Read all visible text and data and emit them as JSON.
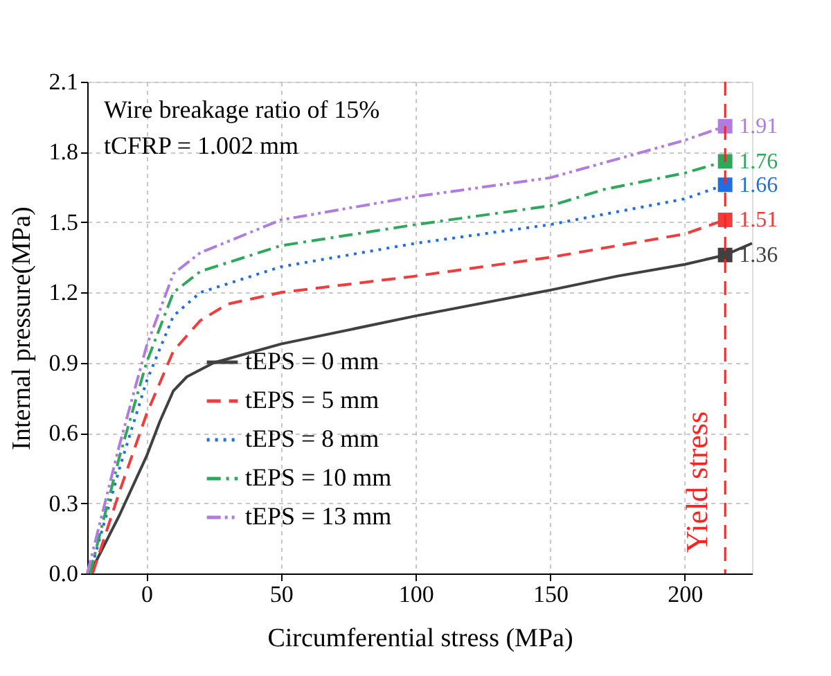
{
  "chart_data": {
    "type": "line",
    "xlabel": "Circumferential stress (MPa)",
    "ylabel": "Internal pressure(MPa)",
    "annotations": [
      "Wire breakage ratio of 15%",
      "tCFRP = 1.002 mm"
    ],
    "xlim": [
      -22,
      225
    ],
    "ylim": [
      0,
      2.1
    ],
    "xticks": [
      0,
      50,
      100,
      150,
      200
    ],
    "yticks": [
      {
        "value": 0,
        "label": "0.0"
      },
      0.3,
      0.6,
      0.9,
      1.2,
      1.5,
      1.8,
      2.1
    ],
    "grid": true,
    "legend": "bottom left",
    "ref_lines": [
      {
        "axis": "x",
        "value": 215,
        "label": "Yield stress",
        "color": "#ff2020",
        "line_style": "dashed"
      }
    ],
    "series": [
      {
        "name": "tEPS = 0 mm",
        "color": "#404040",
        "line_style": "solid",
        "x": [
          -21,
          -10,
          0,
          5,
          10,
          15,
          25,
          50,
          100,
          150,
          175,
          200,
          215,
          225
        ],
        "values": [
          0,
          0.25,
          0.5,
          0.65,
          0.78,
          0.84,
          0.9,
          0.98,
          1.1,
          1.21,
          1.27,
          1.32,
          1.36,
          1.41
        ]
      },
      {
        "name": "tEPS = 5 mm",
        "color": "#f03c3c",
        "line_style": "dashed",
        "x": [
          -20,
          -10,
          0,
          10,
          20,
          30,
          50,
          100,
          150,
          200,
          215
        ],
        "values": [
          0,
          0.35,
          0.68,
          0.95,
          1.08,
          1.15,
          1.2,
          1.27,
          1.35,
          1.45,
          1.51
        ]
      },
      {
        "name": "tEPS = 8 mm",
        "color": "#1f6fe0",
        "line_style": "dotted",
        "x": [
          -21,
          -10,
          0,
          10,
          20,
          50,
          100,
          150,
          200,
          215
        ],
        "values": [
          0,
          0.45,
          0.82,
          1.1,
          1.2,
          1.31,
          1.41,
          1.49,
          1.6,
          1.66
        ]
      },
      {
        "name": "tEPS = 10 mm",
        "color": "#2ea85a",
        "line_style": "dashdot",
        "x": [
          -21,
          -10,
          0,
          10,
          20,
          50,
          100,
          150,
          170,
          200,
          215
        ],
        "values": [
          0,
          0.5,
          0.9,
          1.2,
          1.29,
          1.4,
          1.49,
          1.57,
          1.64,
          1.71,
          1.76
        ]
      },
      {
        "name": "tEPS = 13 mm",
        "color": "#b07ce0",
        "line_style": "dashdotdot",
        "x": [
          -22,
          -10,
          0,
          10,
          20,
          50,
          100,
          150,
          200,
          215
        ],
        "values": [
          0,
          0.55,
          0.97,
          1.28,
          1.37,
          1.51,
          1.61,
          1.69,
          1.85,
          1.91
        ]
      },
      {
        "type": "scatter",
        "marker": "square",
        "color": "#404040",
        "x": [
          215
        ],
        "values": [
          1.36
        ],
        "value_labels": [
          "1.36"
        ]
      },
      {
        "type": "scatter",
        "marker": "square",
        "color": "#f03c3c",
        "x": [
          215
        ],
        "values": [
          1.51
        ],
        "value_labels": [
          "1.51"
        ]
      },
      {
        "type": "scatter",
        "marker": "square",
        "color": "#1f6fe0",
        "x": [
          215
        ],
        "values": [
          1.66
        ],
        "value_labels": [
          "1.66"
        ]
      },
      {
        "type": "scatter",
        "marker": "square",
        "color": "#2ea85a",
        "x": [
          215
        ],
        "values": [
          1.76
        ],
        "value_labels": [
          "1.76"
        ]
      },
      {
        "type": "scatter",
        "marker": "square",
        "color": "#b07ce0",
        "x": [
          215
        ],
        "values": [
          1.91
        ],
        "value_labels": [
          "1.91"
        ]
      }
    ]
  }
}
